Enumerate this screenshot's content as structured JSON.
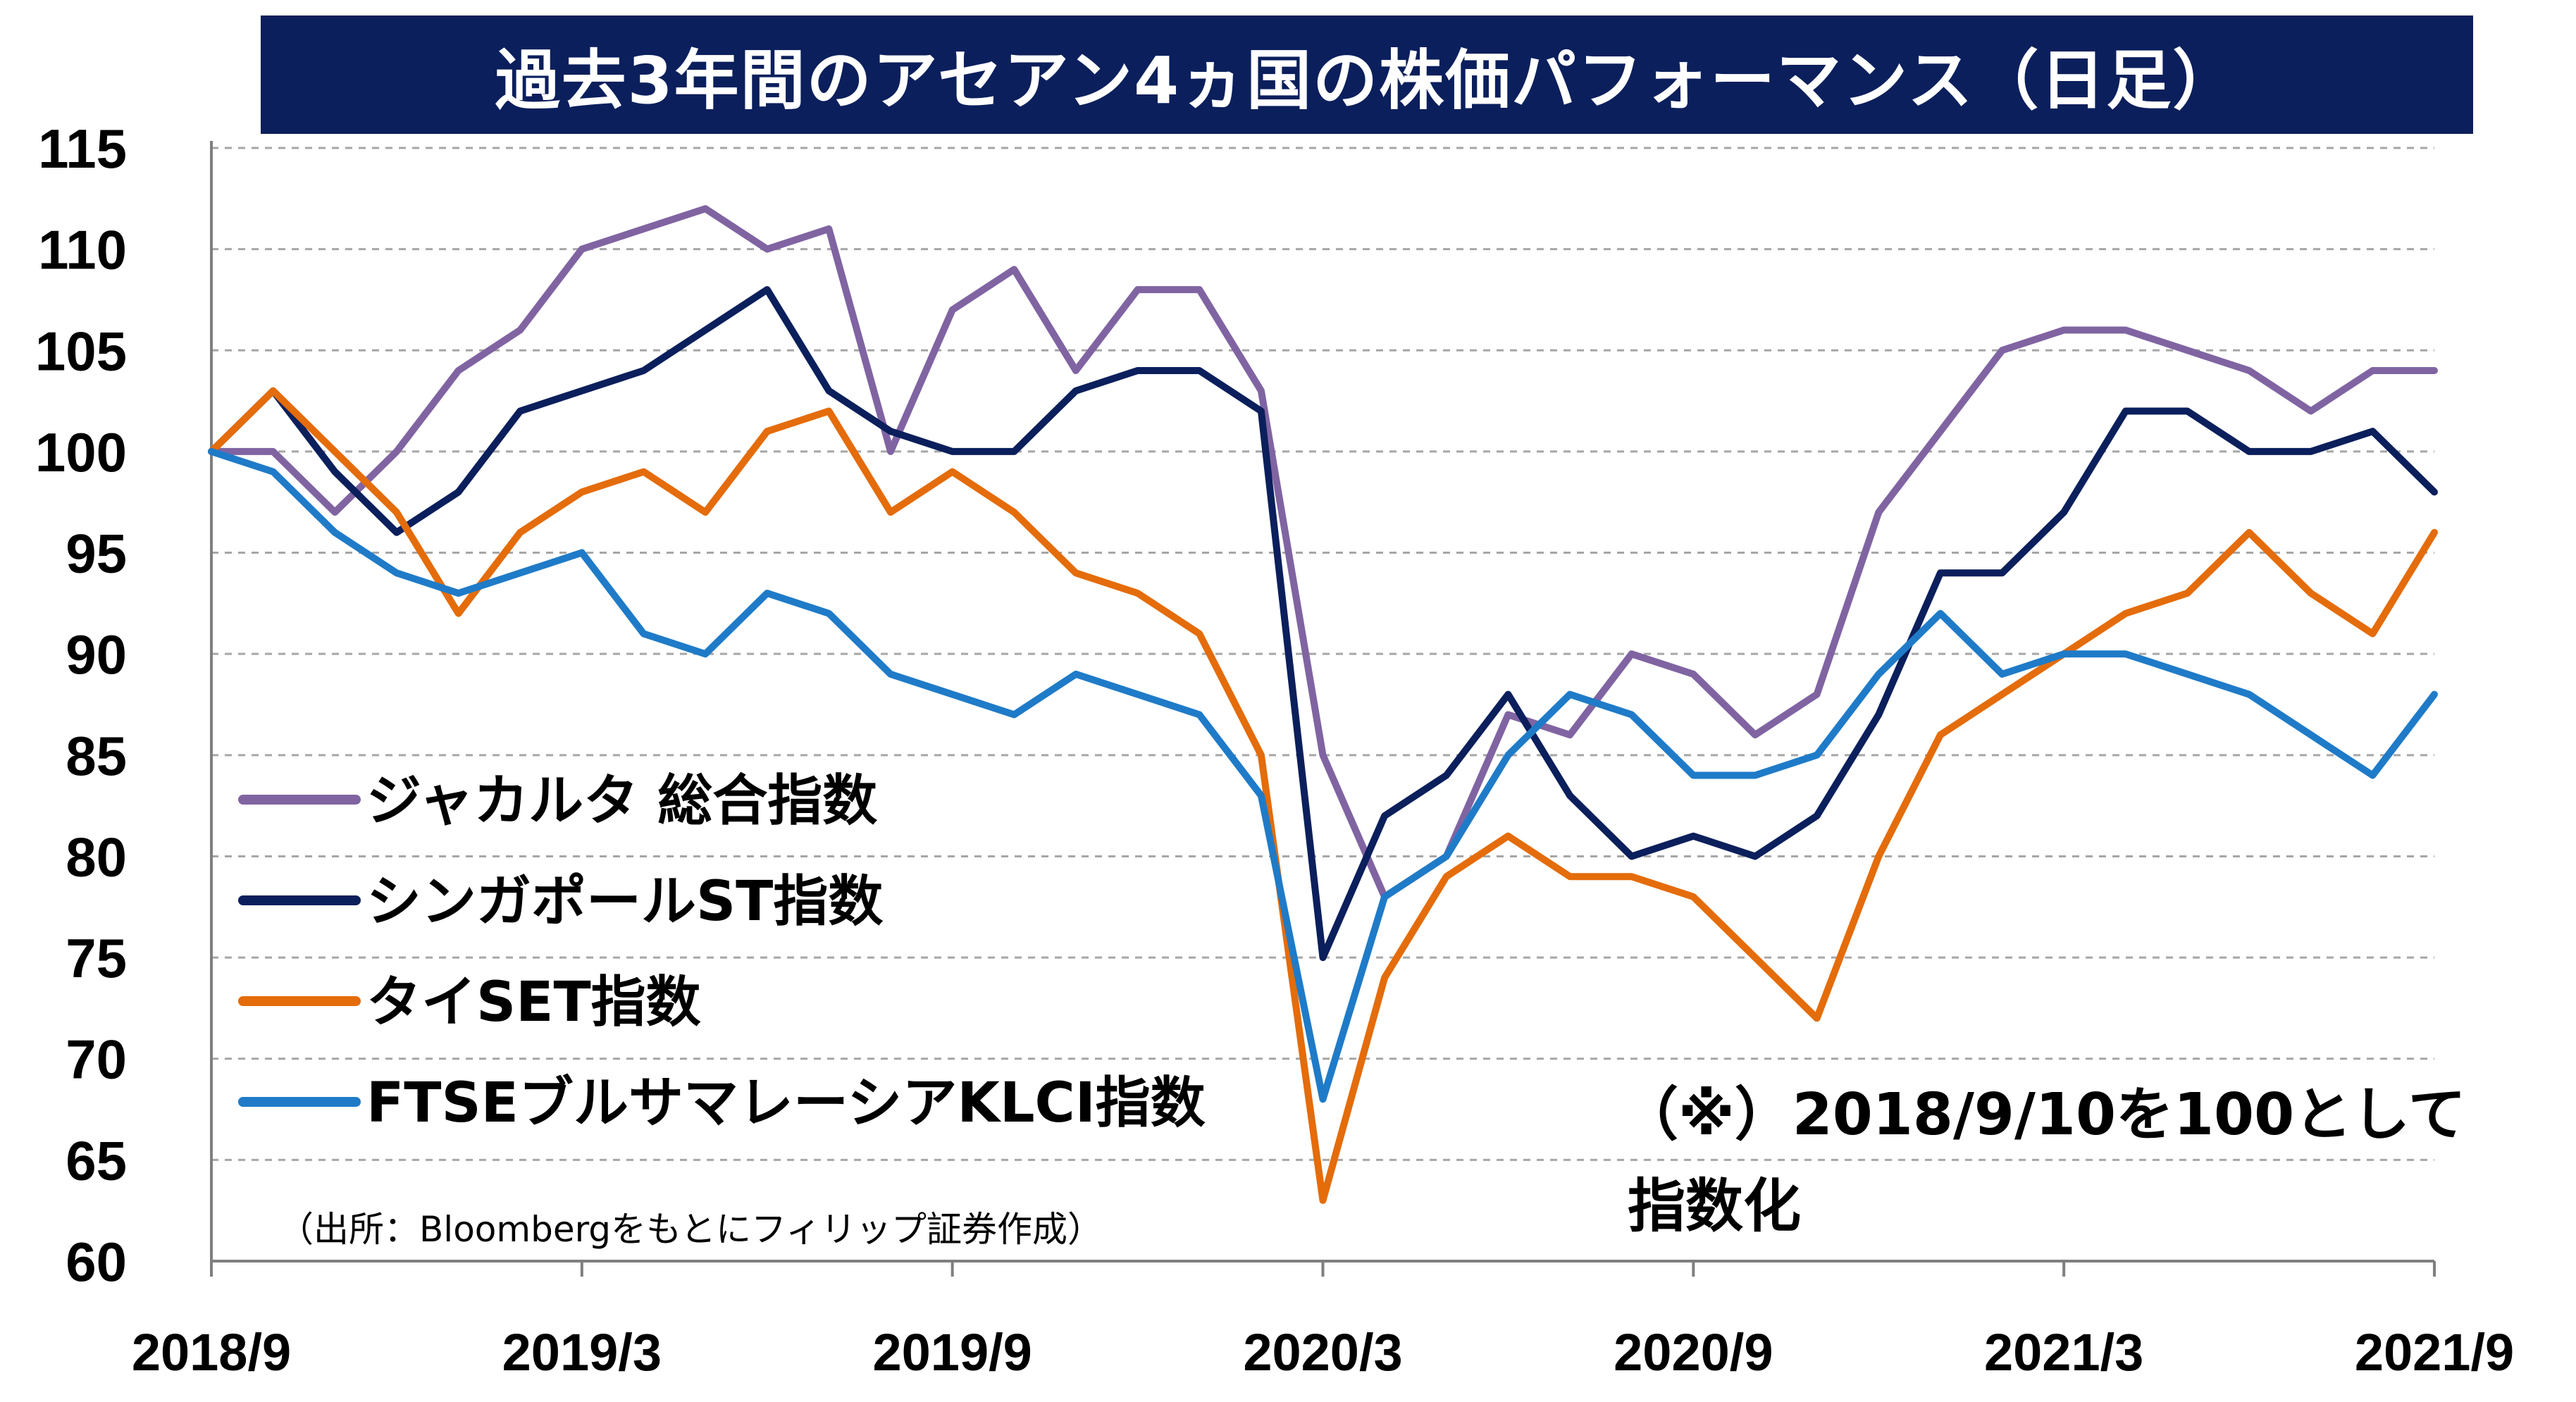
{
  "chart_data": {
    "type": "line",
    "title": "過去3年間のアセアン4ヵ国の株価パフォーマンス（日足）",
    "xlabel": "",
    "ylabel": "",
    "ylim": [
      60,
      115
    ],
    "yticks": [
      "60",
      "65",
      "70",
      "75",
      "80",
      "85",
      "90",
      "95",
      "100",
      "105",
      "110",
      "115"
    ],
    "xticks": [
      "2018/9",
      "2019/3",
      "2019/9",
      "2020/3",
      "2020/9",
      "2021/3",
      "2021/9"
    ],
    "grid": "horizontal dashed",
    "legend_position": "lower-left",
    "x": [
      "2018/9",
      "2018/10",
      "2018/11",
      "2018/12",
      "2019/1",
      "2019/2",
      "2019/3",
      "2019/4",
      "2019/5",
      "2019/6",
      "2019/7",
      "2019/8",
      "2019/9",
      "2019/10",
      "2019/11",
      "2019/12",
      "2020/1",
      "2020/2",
      "2020/3",
      "2020/4",
      "2020/5",
      "2020/6",
      "2020/7",
      "2020/8",
      "2020/9",
      "2020/10",
      "2020/11",
      "2020/12",
      "2021/1",
      "2021/2",
      "2021/3",
      "2021/4",
      "2021/5",
      "2021/6",
      "2021/7",
      "2021/8",
      "2021/9"
    ],
    "series": [
      {
        "name": "ジャカルタ 総合指数",
        "color": "#8064a2",
        "values": [
          100,
          100,
          97,
          100,
          104,
          106,
          110,
          111,
          112,
          110,
          111,
          100,
          107,
          109,
          104,
          108,
          108,
          103,
          85,
          78,
          80,
          87,
          86,
          90,
          89,
          86,
          88,
          97,
          101,
          105,
          106,
          106,
          105,
          104,
          102,
          104,
          104
        ]
      },
      {
        "name": "シンガポールST指数",
        "color": "#0b1f5c",
        "values": [
          100,
          103,
          99,
          96,
          98,
          102,
          103,
          104,
          106,
          108,
          103,
          101,
          100,
          100,
          103,
          104,
          104,
          102,
          75,
          82,
          84,
          88,
          83,
          80,
          81,
          80,
          82,
          87,
          94,
          94,
          97,
          102,
          102,
          100,
          100,
          101,
          98
        ]
      },
      {
        "name": "タイSET指数",
        "color": "#e46c0a",
        "values": [
          100,
          103,
          100,
          97,
          92,
          96,
          98,
          99,
          97,
          101,
          102,
          97,
          99,
          97,
          94,
          93,
          91,
          85,
          63,
          74,
          79,
          81,
          79,
          79,
          78,
          75,
          72,
          80,
          86,
          88,
          90,
          92,
          93,
          96,
          93,
          91,
          96
        ]
      },
      {
        "name": "FTSEブルサマレーシアKLCI指数",
        "color": "#1f7bc8",
        "values": [
          100,
          99,
          96,
          94,
          93,
          94,
          95,
          91,
          90,
          93,
          92,
          89,
          88,
          87,
          89,
          88,
          87,
          83,
          68,
          78,
          80,
          85,
          88,
          87,
          84,
          84,
          85,
          89,
          92,
          89,
          90,
          90,
          89,
          88,
          86,
          84,
          88
        ]
      }
    ]
  },
  "annotations": {
    "note": "（※）2018/9/10を100として指数化",
    "source": "（出所：Bloombergをもとにフィリップ証券作成）"
  }
}
